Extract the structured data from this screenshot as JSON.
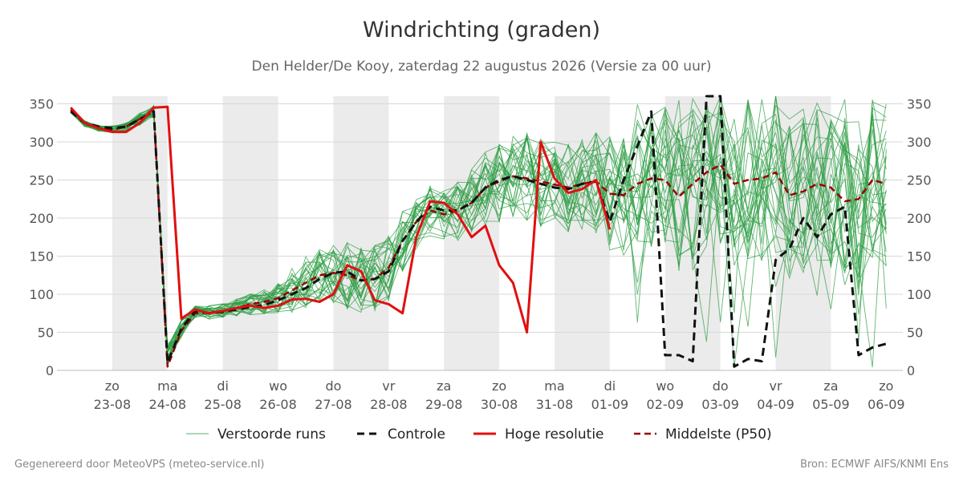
{
  "header": {
    "title": "Windrichting (graden)",
    "subtitle": "Den Helder/De Kooy, zaterdag 22 augustus 2026 (Versie za 00 uur)"
  },
  "footer": {
    "left": "Gegenereerd door MeteoVPS (meteo-service.nl)",
    "right": "Bron: ECMWF AIFS/KNMI Ens"
  },
  "legend": {
    "members": "Verstoorde runs",
    "control": "Controle",
    "hires": "Hoge resolutie",
    "p50": "Middelste (P50)"
  },
  "colors": {
    "members": "#2e9e44",
    "control": "#111111",
    "hires": "#e01010",
    "p50": "#990000",
    "shade": "#ebebeb",
    "grid": "#d8d8d8"
  },
  "chart_data": {
    "type": "line",
    "title": "Windrichting (graden)",
    "ylim": [
      0,
      360
    ],
    "yticks": [
      0,
      50,
      100,
      150,
      200,
      250,
      300,
      350
    ],
    "xlim": [
      -1,
      14.3
    ],
    "x_unit": "days since 23-08 00:00",
    "grid": "horizontal",
    "legend_position": "bottom",
    "x_tick_labels": [
      {
        "day": "zo",
        "date": "23-08"
      },
      {
        "day": "ma",
        "date": "24-08"
      },
      {
        "day": "di",
        "date": "25-08"
      },
      {
        "day": "wo",
        "date": "26-08"
      },
      {
        "day": "do",
        "date": "27-08"
      },
      {
        "day": "vr",
        "date": "28-08"
      },
      {
        "day": "za",
        "date": "29-08"
      },
      {
        "day": "zo",
        "date": "30-08"
      },
      {
        "day": "ma",
        "date": "31-08"
      },
      {
        "day": "di",
        "date": "01-09"
      },
      {
        "day": "wo",
        "date": "02-09"
      },
      {
        "day": "do",
        "date": "03-09"
      },
      {
        "day": "vr",
        "date": "04-09"
      },
      {
        "day": "za",
        "date": "05-09"
      },
      {
        "day": "zo",
        "date": "06-09"
      }
    ],
    "shaded_days": [
      {
        "from": 0,
        "to": 1
      },
      {
        "from": 2,
        "to": 3
      },
      {
        "from": 4,
        "to": 5
      },
      {
        "from": 6,
        "to": 7
      },
      {
        "from": 8,
        "to": 9
      },
      {
        "from": 10,
        "to": 11
      },
      {
        "from": 12,
        "to": 13
      }
    ],
    "series": [
      {
        "name": "Hoge resolutie",
        "style": "solid",
        "x": [
          -0.75,
          -0.5,
          -0.25,
          0,
          0.25,
          0.5,
          0.75,
          1,
          1.25,
          1.5,
          1.75,
          2,
          2.25,
          2.5,
          2.75,
          3,
          3.25,
          3.5,
          3.75,
          4,
          4.25,
          4.5,
          4.75,
          5,
          5.25,
          5.5,
          5.75,
          6,
          6.25,
          6.5,
          6.75,
          7,
          7.25,
          7.5,
          7.75,
          8,
          8.25,
          8.5,
          8.75,
          9
        ],
        "y": [
          345,
          325,
          318,
          313,
          313,
          325,
          345,
          346,
          68,
          80,
          75,
          78,
          82,
          85,
          82,
          85,
          93,
          94,
          90,
          100,
          138,
          130,
          92,
          87,
          75,
          175,
          222,
          220,
          205,
          175,
          190,
          138,
          115,
          50,
          300,
          252,
          233,
          238,
          250,
          185
        ]
      },
      {
        "name": "Controle",
        "style": "dashed",
        "x": [
          -0.75,
          -0.5,
          -0.25,
          0,
          0.25,
          0.5,
          0.75,
          1,
          1.25,
          1.5,
          1.75,
          2,
          2.25,
          2.5,
          2.75,
          3,
          3.25,
          3.5,
          3.75,
          4,
          4.25,
          4.5,
          4.75,
          5,
          5.25,
          5.5,
          5.75,
          6,
          6.25,
          6.5,
          6.75,
          7,
          7.25,
          7.5,
          7.75,
          8,
          8.25,
          8.5,
          8.75,
          9,
          9.25,
          9.5,
          9.75,
          10,
          10.25,
          10.5,
          10.75,
          11,
          11.25,
          11.5,
          11.75,
          12,
          12.25,
          12.5,
          12.75,
          13,
          13.25,
          13.5,
          13.75,
          14
        ],
        "y": [
          340,
          325,
          320,
          318,
          320,
          330,
          340,
          10,
          55,
          78,
          75,
          77,
          80,
          83,
          86,
          92,
          100,
          108,
          120,
          128,
          130,
          118,
          120,
          130,
          170,
          195,
          215,
          210,
          210,
          220,
          240,
          250,
          255,
          250,
          245,
          240,
          238,
          245,
          248,
          195,
          250,
          295,
          340,
          20,
          20,
          12,
          360,
          360,
          5,
          15,
          12,
          145,
          160,
          200,
          175,
          205,
          215,
          20,
          30,
          35
        ]
      },
      {
        "name": "Middelste (P50)",
        "style": "dashed",
        "x": [
          -0.75,
          -0.5,
          -0.25,
          0,
          0.25,
          0.5,
          0.75,
          1,
          1.25,
          1.5,
          1.75,
          2,
          2.25,
          2.5,
          2.75,
          3,
          3.25,
          3.5,
          3.75,
          4,
          4.25,
          4.5,
          4.75,
          5,
          5.25,
          5.5,
          5.75,
          6,
          6.25,
          6.5,
          6.75,
          7,
          7.25,
          7.5,
          7.75,
          8,
          8.25,
          8.5,
          8.75,
          9,
          9.25,
          9.5,
          9.75,
          10,
          10.25,
          10.5,
          10.75,
          11,
          11.25,
          11.5,
          11.75,
          12,
          12.25,
          12.5,
          12.75,
          13,
          13.25,
          13.5,
          13.75,
          14
        ],
        "y": [
          342,
          324,
          318,
          316,
          320,
          330,
          340,
          5,
          52,
          75,
          76,
          78,
          82,
          87,
          90,
          95,
          105,
          115,
          125,
          128,
          125,
          118,
          120,
          135,
          170,
          195,
          210,
          205,
          210,
          220,
          240,
          248,
          255,
          252,
          248,
          244,
          240,
          245,
          248,
          232,
          230,
          245,
          252,
          250,
          228,
          245,
          260,
          270,
          245,
          250,
          252,
          260,
          230,
          235,
          245,
          240,
          222,
          225,
          250,
          245
        ]
      }
    ],
    "ensemble": {
      "name": "Verstoorde runs",
      "members": 30,
      "x_start": -0.75,
      "x_step": 0.25,
      "center": [
        342,
        324,
        318,
        316,
        320,
        330,
        340,
        20,
        55,
        75,
        76,
        78,
        82,
        87,
        90,
        95,
        105,
        115,
        125,
        128,
        125,
        118,
        120,
        135,
        170,
        195,
        210,
        205,
        210,
        220,
        240,
        248,
        255,
        252,
        248,
        244,
        240,
        245,
        248,
        232,
        230,
        245,
        252,
        250,
        228,
        245,
        260,
        270,
        245,
        250,
        252,
        260,
        230,
        235,
        245,
        240,
        222,
        225,
        250,
        245
      ],
      "spread": [
        4,
        4,
        4,
        5,
        6,
        8,
        8,
        15,
        12,
        10,
        9,
        10,
        12,
        14,
        16,
        20,
        30,
        35,
        35,
        40,
        45,
        45,
        45,
        45,
        40,
        35,
        35,
        35,
        40,
        45,
        50,
        55,
        55,
        60,
        60,
        60,
        60,
        65,
        70,
        75,
        80,
        85,
        90,
        95,
        100,
        100,
        105,
        110,
        110,
        110,
        110,
        110,
        110,
        110,
        110,
        110,
        110,
        110,
        110,
        110
      ]
    }
  }
}
